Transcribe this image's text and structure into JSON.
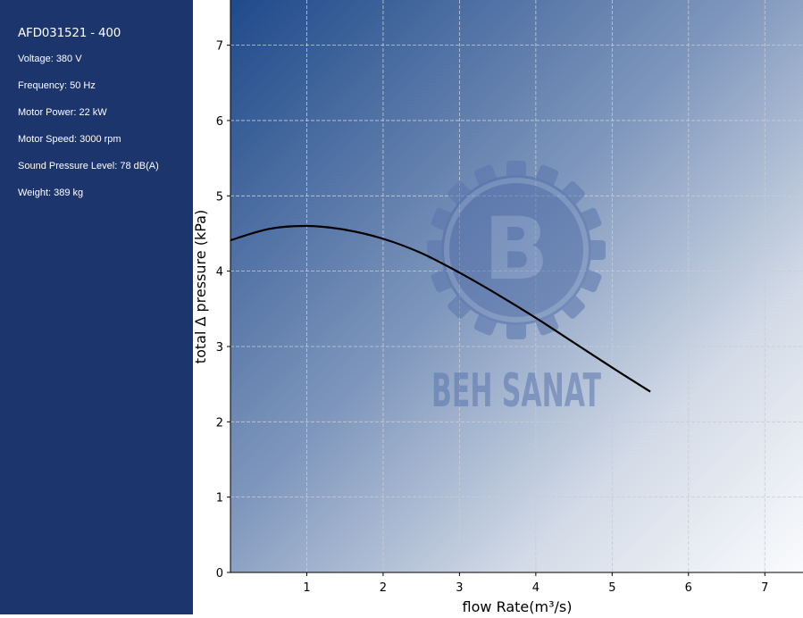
{
  "sidebar": {
    "title": "AFD031521 - 400",
    "specs": [
      "Voltage: 380 V",
      "Frequency: 50 Hz",
      "Motor Power: 22 kW",
      "Motor Speed: 3000 rpm",
      "Sound Pressure Level: 78 dB(A)",
      "Weight: 389 kg"
    ],
    "background": "#1c356d"
  },
  "watermark": {
    "text": "BEH SANAT",
    "letter": "B",
    "color": "#5a76ad"
  },
  "chart_data": {
    "type": "line",
    "title": "",
    "xlabel": "flow Rate(m³/s)",
    "ylabel": "total Δ pressure (kPa)",
    "xlim": [
      0,
      7.5
    ],
    "ylim": [
      0,
      7.6
    ],
    "xticks": [
      1,
      2,
      3,
      4,
      5,
      6,
      7
    ],
    "yticks": [
      0,
      1,
      2,
      3,
      4,
      5,
      6,
      7
    ],
    "grid": true,
    "series": [
      {
        "color": "#000000",
        "x": [
          0,
          0.5,
          1.0,
          1.5,
          2.0,
          2.5,
          3.0,
          3.5,
          4.0,
          4.5,
          5.0,
          5.5
        ],
        "y": [
          4.41,
          4.56,
          4.6,
          4.55,
          4.43,
          4.24,
          3.98,
          3.69,
          3.38,
          3.05,
          2.72,
          2.4
        ]
      }
    ]
  }
}
